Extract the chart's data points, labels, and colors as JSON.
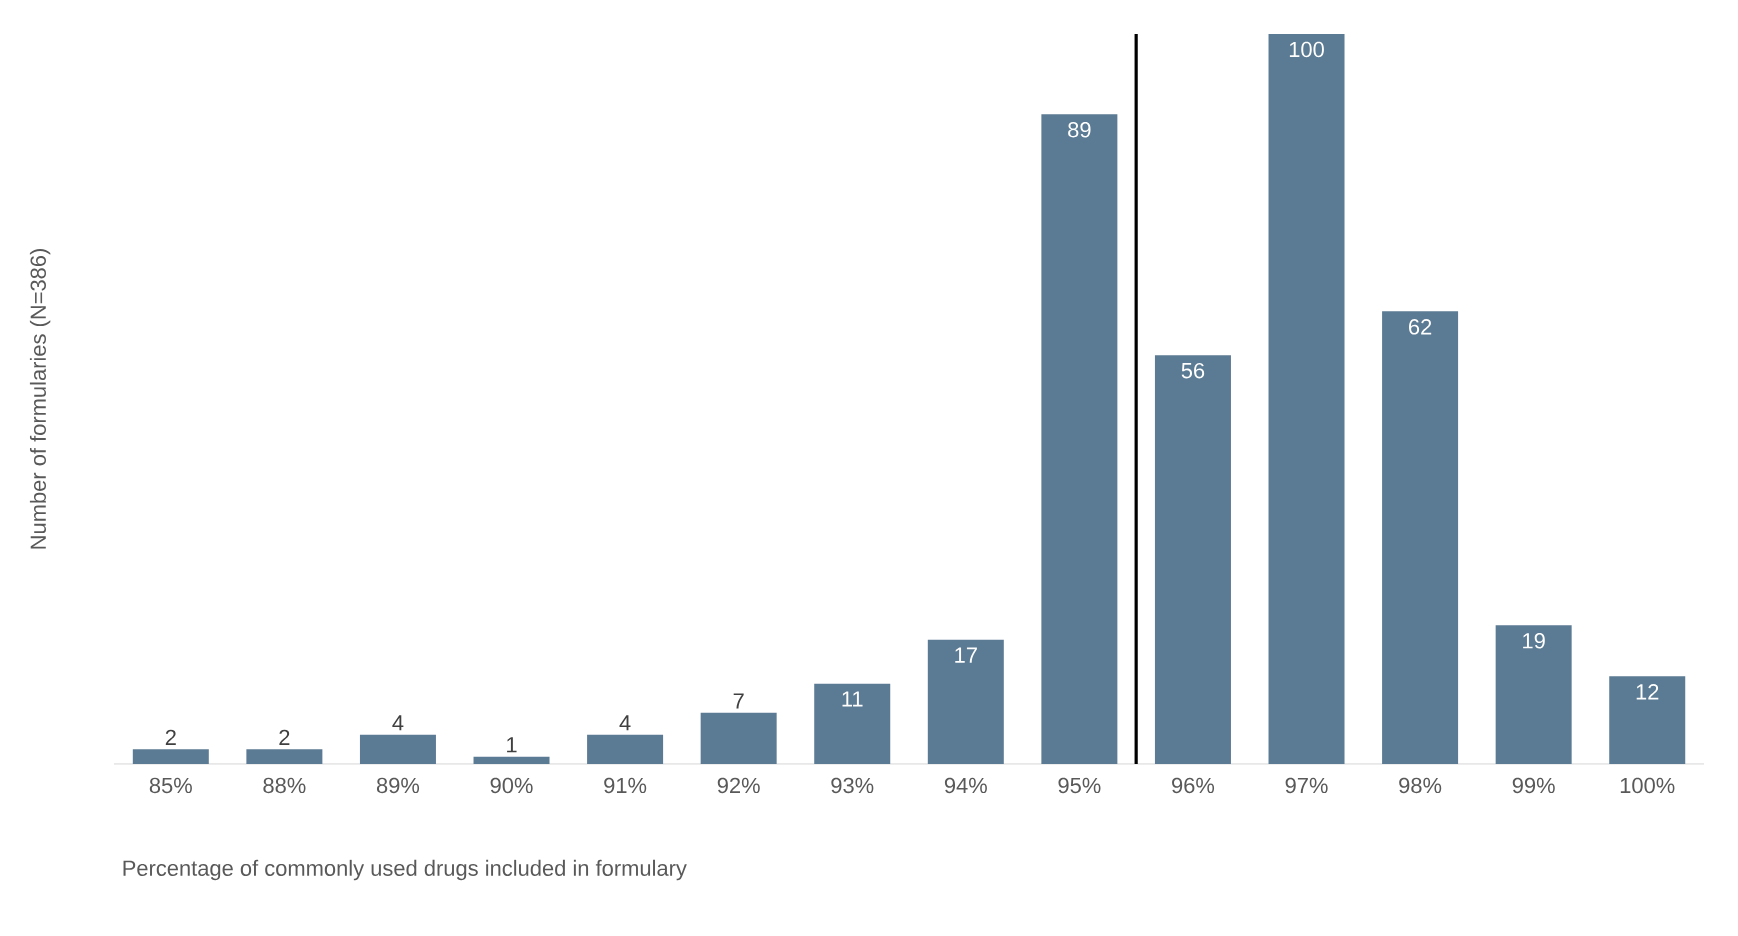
{
  "chart_data": {
    "type": "bar",
    "xlabel": "Percentage of commonly used drugs included in formulary",
    "ylabel": "Number of formularies (N=386)",
    "categories": [
      "85%",
      "88%",
      "89%",
      "90%",
      "91%",
      "92%",
      "93%",
      "94%",
      "95%",
      "96%",
      "97%",
      "98%",
      "99%",
      "100%"
    ],
    "values": [
      2,
      2,
      4,
      1,
      4,
      7,
      11,
      17,
      89,
      56,
      100,
      62,
      19,
      12
    ],
    "color": "#5b7a93",
    "data_labels": true
  }
}
